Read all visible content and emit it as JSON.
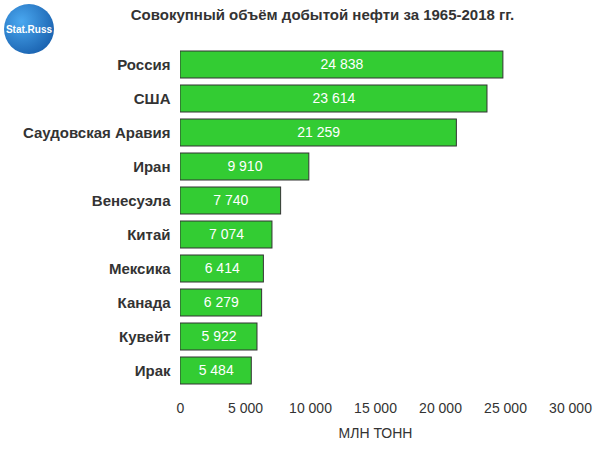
{
  "chart_data": {
    "type": "bar",
    "orientation": "horizontal",
    "title": "Совокупный объём добытой нефти за 1965-2018 гг.",
    "annotations": [
      "Stat.Russ"
    ],
    "xlabel": "МЛН ТОНН",
    "categories": [
      "Россия",
      "США",
      "Саудовская Аравия",
      "Иран",
      "Венесуэла",
      "Китай",
      "Мексика",
      "Канада",
      "Кувейт",
      "Ирак"
    ],
    "values": [
      24838,
      23614,
      21259,
      9910,
      7740,
      7074,
      6414,
      6279,
      5922,
      5484
    ],
    "value_labels": [
      "24 838",
      "23 614",
      "21 259",
      "9 910",
      "7 740",
      "7 074",
      "6 414",
      "6 279",
      "5 922",
      "5 484"
    ],
    "color": "#33cc33",
    "xlim": [
      0,
      30000
    ],
    "xticks": [
      0,
      {
        "value": 5000,
        "label": "5 000"
      },
      {
        "value": 10000,
        "label": "10 000"
      },
      {
        "value": 15000,
        "label": "15 000"
      },
      {
        "value": 20000,
        "label": "20 000"
      },
      {
        "value": 25000,
        "label": "25 000"
      },
      {
        "value": 30000,
        "label": "30 000"
      }
    ],
    "grid": false,
    "data_labels": true
  }
}
